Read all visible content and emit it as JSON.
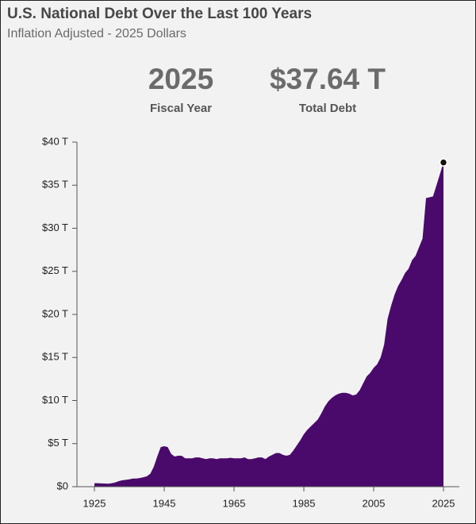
{
  "chart_data": {
    "type": "area",
    "title": "U.S. National Debt Over the Last 100 Years",
    "subtitle": "Inflation Adjusted - 2025 Dollars",
    "stats": [
      {
        "value": "2025",
        "label": "Fiscal Year"
      },
      {
        "value": "$37.64 T",
        "label": "Total Debt"
      }
    ],
    "color": "#4a0a6b",
    "x": [
      1925,
      1926,
      1927,
      1928,
      1929,
      1930,
      1931,
      1932,
      1933,
      1934,
      1935,
      1936,
      1937,
      1938,
      1939,
      1940,
      1941,
      1942,
      1943,
      1944,
      1945,
      1946,
      1947,
      1948,
      1949,
      1950,
      1951,
      1952,
      1953,
      1954,
      1955,
      1956,
      1957,
      1958,
      1959,
      1960,
      1961,
      1962,
      1963,
      1964,
      1965,
      1966,
      1967,
      1968,
      1969,
      1970,
      1971,
      1972,
      1973,
      1974,
      1975,
      1976,
      1977,
      1978,
      1979,
      1980,
      1981,
      1982,
      1983,
      1984,
      1985,
      1986,
      1987,
      1988,
      1989,
      1990,
      1991,
      1992,
      1993,
      1994,
      1995,
      1996,
      1997,
      1998,
      1999,
      2000,
      2001,
      2002,
      2003,
      2004,
      2005,
      2006,
      2007,
      2008,
      2009,
      2010,
      2011,
      2012,
      2013,
      2014,
      2015,
      2016,
      2017,
      2018,
      2019,
      2020,
      2021,
      2022,
      2023,
      2024,
      2025
    ],
    "values": [
      0.4,
      0.4,
      0.38,
      0.37,
      0.35,
      0.4,
      0.5,
      0.65,
      0.75,
      0.8,
      0.85,
      0.95,
      0.95,
      1.0,
      1.1,
      1.2,
      1.5,
      2.3,
      3.5,
      4.6,
      4.7,
      4.6,
      3.8,
      3.5,
      3.6,
      3.6,
      3.3,
      3.3,
      3.3,
      3.4,
      3.4,
      3.3,
      3.2,
      3.3,
      3.3,
      3.2,
      3.3,
      3.3,
      3.3,
      3.35,
      3.3,
      3.3,
      3.3,
      3.4,
      3.2,
      3.2,
      3.3,
      3.4,
      3.4,
      3.2,
      3.5,
      3.7,
      3.9,
      3.9,
      3.7,
      3.6,
      3.7,
      4.2,
      4.8,
      5.4,
      6.1,
      6.6,
      7.0,
      7.4,
      7.8,
      8.5,
      9.3,
      9.9,
      10.3,
      10.6,
      10.8,
      10.9,
      10.9,
      10.8,
      10.6,
      10.7,
      11.2,
      12.0,
      12.8,
      13.2,
      13.8,
      14.2,
      15.0,
      16.5,
      19.5,
      21.0,
      22.3,
      23.3,
      24.0,
      24.8,
      25.3,
      26.3,
      26.8,
      27.8,
      28.8,
      33.5,
      33.6,
      33.7,
      35.0,
      36.3,
      37.64
    ],
    "xlim": [
      1925,
      2025
    ],
    "xticks": [
      1925,
      1945,
      1965,
      1985,
      2005,
      2025
    ],
    "ylim": [
      0,
      40
    ],
    "yticks": [
      {
        "value": 0,
        "label": "$0"
      },
      {
        "value": 5,
        "label": "$5 T"
      },
      {
        "value": 10,
        "label": "$10 T"
      },
      {
        "value": 15,
        "label": "$15 T"
      },
      {
        "value": 20,
        "label": "$20 T"
      },
      {
        "value": 25,
        "label": "$25 T"
      },
      {
        "value": 30,
        "label": "$30 T"
      },
      {
        "value": 35,
        "label": "$35 T"
      },
      {
        "value": 40,
        "label": "$40 T"
      }
    ]
  }
}
